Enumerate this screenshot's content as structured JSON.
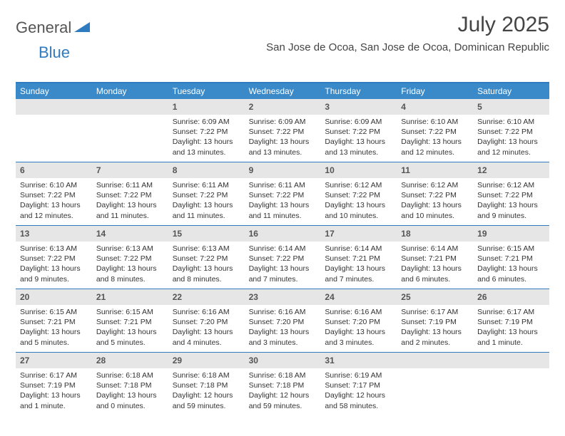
{
  "brand": {
    "name1": "General",
    "name2": "Blue",
    "shape_color": "#2f7bbf"
  },
  "title": "July 2025",
  "location": "San Jose de Ocoa, San Jose de Ocoa, Dominican Republic",
  "colors": {
    "header_bg": "#3a8ac9",
    "border": "#2f7bbf",
    "daynum_bg": "#e6e6e6",
    "text": "#333333"
  },
  "weekdays": [
    "Sunday",
    "Monday",
    "Tuesday",
    "Wednesday",
    "Thursday",
    "Friday",
    "Saturday"
  ],
  "weeks": [
    [
      null,
      null,
      {
        "n": "1",
        "sr": "6:09 AM",
        "ss": "7:22 PM",
        "dl": "13 hours and 13 minutes."
      },
      {
        "n": "2",
        "sr": "6:09 AM",
        "ss": "7:22 PM",
        "dl": "13 hours and 13 minutes."
      },
      {
        "n": "3",
        "sr": "6:09 AM",
        "ss": "7:22 PM",
        "dl": "13 hours and 13 minutes."
      },
      {
        "n": "4",
        "sr": "6:10 AM",
        "ss": "7:22 PM",
        "dl": "13 hours and 12 minutes."
      },
      {
        "n": "5",
        "sr": "6:10 AM",
        "ss": "7:22 PM",
        "dl": "13 hours and 12 minutes."
      }
    ],
    [
      {
        "n": "6",
        "sr": "6:10 AM",
        "ss": "7:22 PM",
        "dl": "13 hours and 12 minutes."
      },
      {
        "n": "7",
        "sr": "6:11 AM",
        "ss": "7:22 PM",
        "dl": "13 hours and 11 minutes."
      },
      {
        "n": "8",
        "sr": "6:11 AM",
        "ss": "7:22 PM",
        "dl": "13 hours and 11 minutes."
      },
      {
        "n": "9",
        "sr": "6:11 AM",
        "ss": "7:22 PM",
        "dl": "13 hours and 11 minutes."
      },
      {
        "n": "10",
        "sr": "6:12 AM",
        "ss": "7:22 PM",
        "dl": "13 hours and 10 minutes."
      },
      {
        "n": "11",
        "sr": "6:12 AM",
        "ss": "7:22 PM",
        "dl": "13 hours and 10 minutes."
      },
      {
        "n": "12",
        "sr": "6:12 AM",
        "ss": "7:22 PM",
        "dl": "13 hours and 9 minutes."
      }
    ],
    [
      {
        "n": "13",
        "sr": "6:13 AM",
        "ss": "7:22 PM",
        "dl": "13 hours and 9 minutes."
      },
      {
        "n": "14",
        "sr": "6:13 AM",
        "ss": "7:22 PM",
        "dl": "13 hours and 8 minutes."
      },
      {
        "n": "15",
        "sr": "6:13 AM",
        "ss": "7:22 PM",
        "dl": "13 hours and 8 minutes."
      },
      {
        "n": "16",
        "sr": "6:14 AM",
        "ss": "7:22 PM",
        "dl": "13 hours and 7 minutes."
      },
      {
        "n": "17",
        "sr": "6:14 AM",
        "ss": "7:21 PM",
        "dl": "13 hours and 7 minutes."
      },
      {
        "n": "18",
        "sr": "6:14 AM",
        "ss": "7:21 PM",
        "dl": "13 hours and 6 minutes."
      },
      {
        "n": "19",
        "sr": "6:15 AM",
        "ss": "7:21 PM",
        "dl": "13 hours and 6 minutes."
      }
    ],
    [
      {
        "n": "20",
        "sr": "6:15 AM",
        "ss": "7:21 PM",
        "dl": "13 hours and 5 minutes."
      },
      {
        "n": "21",
        "sr": "6:15 AM",
        "ss": "7:21 PM",
        "dl": "13 hours and 5 minutes."
      },
      {
        "n": "22",
        "sr": "6:16 AM",
        "ss": "7:20 PM",
        "dl": "13 hours and 4 minutes."
      },
      {
        "n": "23",
        "sr": "6:16 AM",
        "ss": "7:20 PM",
        "dl": "13 hours and 3 minutes."
      },
      {
        "n": "24",
        "sr": "6:16 AM",
        "ss": "7:20 PM",
        "dl": "13 hours and 3 minutes."
      },
      {
        "n": "25",
        "sr": "6:17 AM",
        "ss": "7:19 PM",
        "dl": "13 hours and 2 minutes."
      },
      {
        "n": "26",
        "sr": "6:17 AM",
        "ss": "7:19 PM",
        "dl": "13 hours and 1 minute."
      }
    ],
    [
      {
        "n": "27",
        "sr": "6:17 AM",
        "ss": "7:19 PM",
        "dl": "13 hours and 1 minute."
      },
      {
        "n": "28",
        "sr": "6:18 AM",
        "ss": "7:18 PM",
        "dl": "13 hours and 0 minutes."
      },
      {
        "n": "29",
        "sr": "6:18 AM",
        "ss": "7:18 PM",
        "dl": "12 hours and 59 minutes."
      },
      {
        "n": "30",
        "sr": "6:18 AM",
        "ss": "7:18 PM",
        "dl": "12 hours and 59 minutes."
      },
      {
        "n": "31",
        "sr": "6:19 AM",
        "ss": "7:17 PM",
        "dl": "12 hours and 58 minutes."
      },
      null,
      null
    ]
  ],
  "labels": {
    "sunrise": "Sunrise:",
    "sunset": "Sunset:",
    "daylight": "Daylight:"
  }
}
